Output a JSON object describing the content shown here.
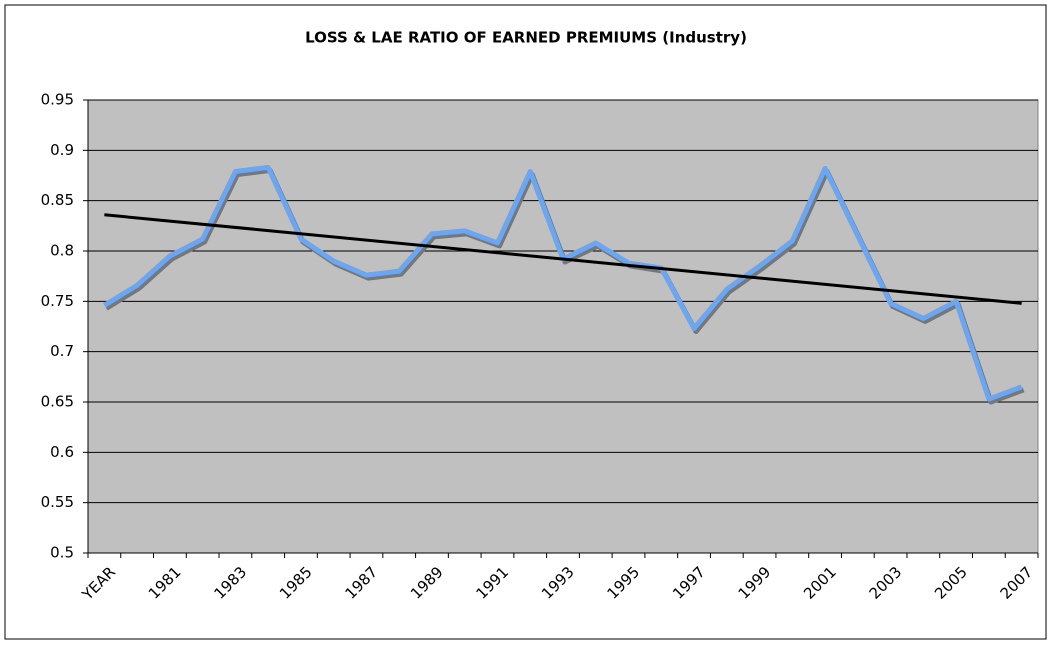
{
  "chart_data": {
    "type": "line",
    "title": "LOSS & LAE RATIO OF EARNED PREMIUMS (Industry)",
    "categories": [
      "YEAR",
      null,
      "1981",
      null,
      "1983",
      null,
      "1985",
      null,
      "1987",
      null,
      "1989",
      null,
      "1991",
      null,
      "1993",
      null,
      "1995",
      null,
      "1997",
      null,
      "1999",
      null,
      "2001",
      null,
      "2003",
      null,
      "2005",
      null,
      "2007"
    ],
    "series": [
      {
        "color": "#6aa6f2",
        "values": [
          0.746,
          0.766,
          0.795,
          0.812,
          0.879,
          0.883,
          0.812,
          0.79,
          0.776,
          0.78,
          0.817,
          0.82,
          0.808,
          0.879,
          0.792,
          0.808,
          0.788,
          0.783,
          0.723,
          0.762,
          0.785,
          0.81,
          0.882,
          0.815,
          0.748,
          0.733,
          0.75,
          0.653,
          0.665
        ]
      }
    ],
    "trendline": {
      "color": "#000000",
      "values": [
        0.836,
        0.748
      ]
    },
    "ylim": [
      0.5,
      0.95
    ],
    "yticks": [
      0.5,
      0.55,
      0.6,
      0.65,
      0.7,
      0.75,
      0.8,
      0.85,
      0.9,
      0.95
    ],
    "grid": true
  }
}
